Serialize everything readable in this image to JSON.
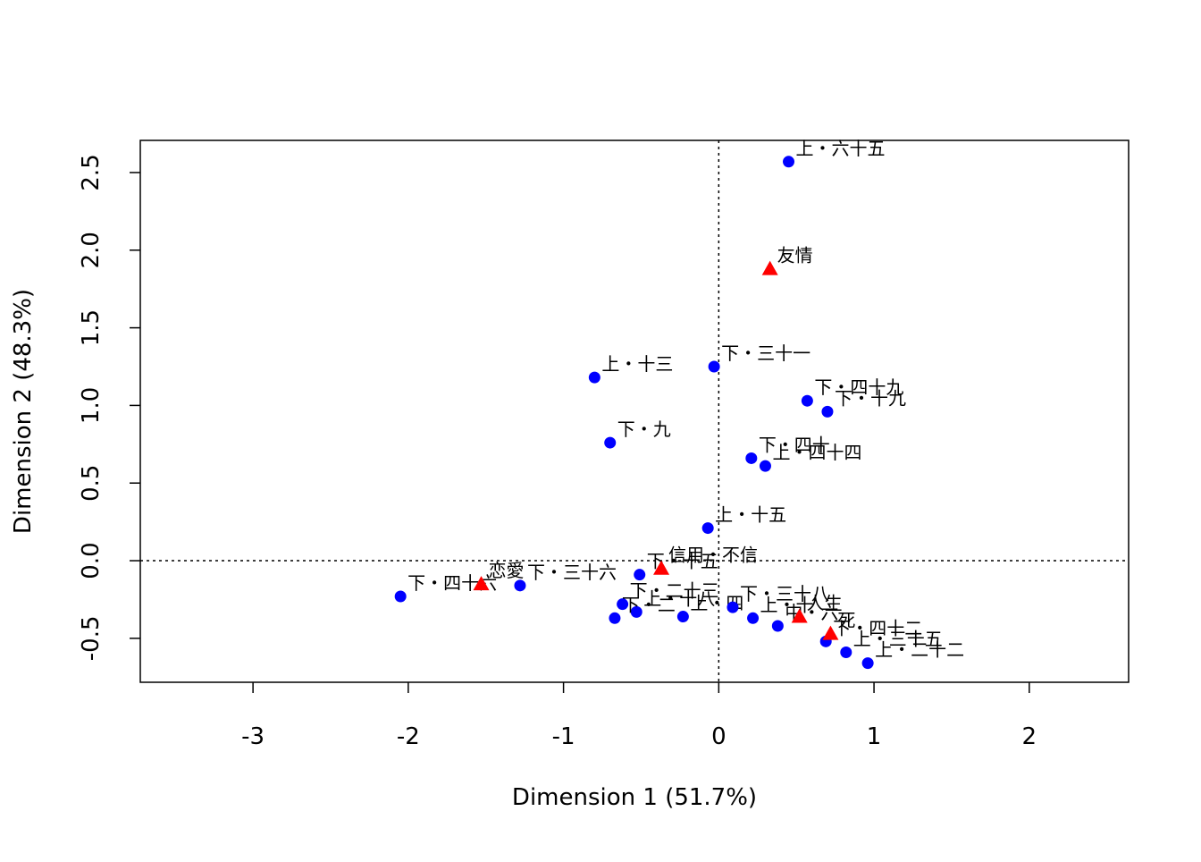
{
  "chart_data": {
    "type": "scatter",
    "x_label": "Dimension 1 (51.7%)",
    "y_label": "Dimension 2 (48.3%)",
    "xlim": [
      -3.726,
      2.64
    ],
    "ylim": [
      -0.783,
      2.707
    ],
    "xticks": [
      -3,
      -2,
      -1,
      0,
      1,
      2
    ],
    "yticks": [
      {
        "value": -0.5,
        "label": "-0.5"
      },
      {
        "value": 0,
        "label": "0.0"
      },
      0.5,
      {
        "value": 1,
        "label": "1.0"
      },
      1.5,
      {
        "value": 2,
        "label": "2.0"
      },
      2.5
    ],
    "series": [
      {
        "name": "rows",
        "color": "#0000ff",
        "marker": "circle",
        "x": [
          0.45,
          -0.8,
          -0.03,
          0.57,
          0.7,
          -0.7,
          0.21,
          0.3,
          -0.07,
          -2.05,
          -1.28,
          -0.51,
          -0.62,
          -0.53,
          -0.67,
          -0.23,
          0.09,
          0.22,
          0.38,
          0.69,
          0.82,
          0.96
        ],
        "y": [
          2.57,
          1.18,
          1.25,
          1.03,
          0.96,
          0.76,
          0.66,
          0.61,
          0.21,
          -0.23,
          -0.16,
          -0.09,
          -0.28,
          -0.33,
          -0.37,
          -0.36,
          -0.3,
          -0.37,
          -0.42,
          -0.52,
          -0.59,
          -0.66
        ],
        "labels": [
          "上・六十五",
          "上・十三",
          "下・三十一",
          "下・四十九",
          "下・十九",
          "下・九",
          "下・四十",
          "上・四十四",
          "上・十五",
          "下・四十六",
          "下・三十六",
          "下・十五",
          "下・二十三",
          "上・十八",
          "下・二",
          "上・四",
          "下・三十八",
          "上・十",
          "中・六",
          "下・四十二",
          "上・三十五",
          "上・二十二"
        ]
      },
      {
        "name": "columns",
        "color": "#ff0000",
        "marker": "triangle",
        "x": [
          0.33,
          -1.53,
          -0.37,
          0.52,
          0.72
        ],
        "y": [
          1.88,
          -0.15,
          -0.05,
          -0.36,
          -0.47
        ],
        "labels": [
          "友情",
          "恋愛",
          "信用・不信",
          "人生",
          "死"
        ]
      }
    ]
  }
}
